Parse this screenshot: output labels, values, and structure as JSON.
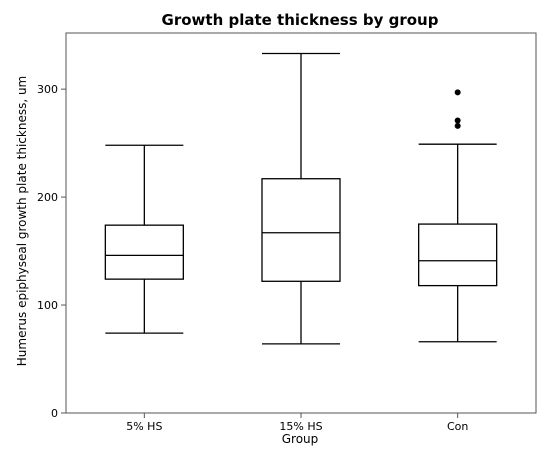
{
  "chart_data": {
    "type": "box",
    "title": "Growth plate thickness by group",
    "xlabel": "Group",
    "ylabel": "Humerus epiphyseal growth plate thickness, um",
    "ylim": [
      0,
      352
    ],
    "yticks": [
      0,
      100,
      200,
      300
    ],
    "grid": false,
    "categories": [
      "5% HS",
      "15% HS",
      "Con"
    ],
    "boxes": [
      {
        "category": "5% HS",
        "whisker_low": 74,
        "q1": 124,
        "median": 146,
        "q3": 174,
        "whisker_high": 248,
        "outliers": []
      },
      {
        "category": "15% HS",
        "whisker_low": 64,
        "q1": 122,
        "median": 167,
        "q3": 217,
        "whisker_high": 333,
        "outliers": []
      },
      {
        "category": "Con",
        "whisker_low": 66,
        "q1": 118,
        "median": 141,
        "q3": 175,
        "whisker_high": 249,
        "outliers": [
          266,
          271,
          297
        ]
      }
    ]
  }
}
